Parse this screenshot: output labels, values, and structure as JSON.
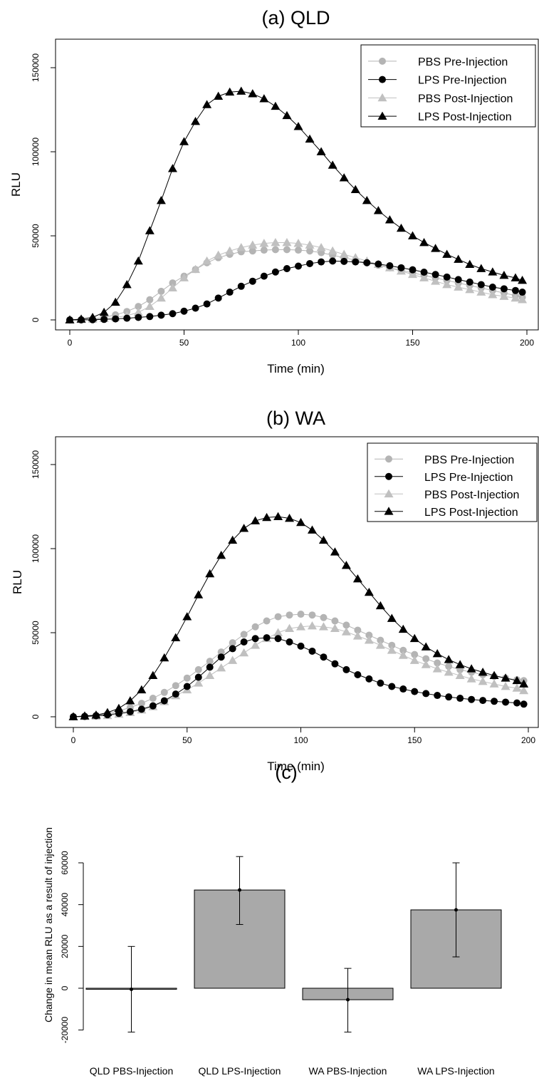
{
  "chart_data": [
    {
      "type": "line",
      "title": "(a) QLD",
      "xlabel": "Time (min)",
      "ylabel": "RLU",
      "xlim": [
        0,
        200
      ],
      "ylim": [
        0,
        150000
      ],
      "x_ticks": [
        "0",
        "50",
        "100",
        "150",
        "200"
      ],
      "y_ticks": [
        "0",
        "50000",
        "100000",
        "150000"
      ],
      "legend_position": "top-right",
      "grid": false,
      "x": [
        0,
        5,
        10,
        15,
        20,
        25,
        30,
        35,
        40,
        45,
        50,
        55,
        60,
        65,
        70,
        75,
        80,
        85,
        90,
        95,
        100,
        105,
        110,
        115,
        120,
        125,
        130,
        135,
        140,
        145,
        150,
        155,
        160,
        165,
        170,
        175,
        180,
        185,
        190,
        195,
        198
      ],
      "series": [
        {
          "name": "PBS Pre-Injection",
          "color": "#b4b4b4",
          "marker": "circle",
          "values": [
            0,
            200,
            600,
            1500,
            3000,
            5000,
            8000,
            12000,
            17000,
            22000,
            26000,
            30000,
            34000,
            37000,
            39000,
            40500,
            41000,
            41500,
            41800,
            41800,
            41500,
            41000,
            40000,
            38500,
            37000,
            35500,
            34000,
            32500,
            31000,
            29500,
            28000,
            26500,
            25000,
            23500,
            22000,
            20500,
            19000,
            17500,
            16000,
            14500,
            13500
          ]
        },
        {
          "name": "LPS Pre-Injection",
          "color": "#000000",
          "marker": "circle",
          "values": [
            0,
            0,
            100,
            300,
            600,
            1000,
            1500,
            2000,
            2800,
            3700,
            5200,
            7000,
            9500,
            13000,
            16500,
            20000,
            23000,
            26000,
            28500,
            30500,
            32000,
            33500,
            34500,
            35000,
            34800,
            34500,
            34000,
            33200,
            32200,
            31000,
            29800,
            28400,
            27000,
            25500,
            24000,
            22500,
            21000,
            19500,
            18500,
            17500,
            16500
          ]
        },
        {
          "name": "PBS Post-Injection",
          "color": "#c0c0c0",
          "marker": "triangle",
          "values": [
            0,
            200,
            400,
            800,
            1500,
            2500,
            4500,
            8000,
            13000,
            19000,
            25000,
            30000,
            35000,
            38500,
            41000,
            43000,
            44500,
            45500,
            46000,
            46000,
            45500,
            44500,
            43000,
            41000,
            39000,
            37000,
            35000,
            33000,
            31000,
            29000,
            27000,
            25000,
            23000,
            21000,
            19500,
            18000,
            16500,
            15000,
            14000,
            13000,
            12000
          ]
        },
        {
          "name": "LPS Post-Injection",
          "color": "#000000",
          "marker": "triangle",
          "values": [
            0,
            500,
            1500,
            4500,
            10500,
            21000,
            35000,
            53000,
            71000,
            90000,
            106000,
            118000,
            128000,
            133000,
            135500,
            136000,
            134500,
            131500,
            127000,
            121500,
            115000,
            107500,
            100000,
            92000,
            84500,
            77500,
            71000,
            65000,
            59500,
            54500,
            50000,
            46000,
            42500,
            39000,
            36000,
            33000,
            30500,
            28500,
            26500,
            25000,
            23500
          ]
        }
      ]
    },
    {
      "type": "line",
      "title": "(b) WA",
      "xlabel": "Time (min)",
      "ylabel": "RLU",
      "xlim": [
        0,
        200
      ],
      "ylim": [
        0,
        150000
      ],
      "x_ticks": [
        "0",
        "50",
        "100",
        "150",
        "200"
      ],
      "y_ticks": [
        "0",
        "50000",
        "100000",
        "150000"
      ],
      "legend_position": "top-right",
      "grid": false,
      "x": [
        0,
        5,
        10,
        15,
        20,
        25,
        30,
        35,
        40,
        45,
        50,
        55,
        60,
        65,
        70,
        75,
        80,
        85,
        90,
        95,
        100,
        105,
        110,
        115,
        120,
        125,
        130,
        135,
        140,
        145,
        150,
        155,
        160,
        165,
        170,
        175,
        180,
        185,
        190,
        195,
        198
      ],
      "series": [
        {
          "name": "PBS Pre-Injection",
          "color": "#b4b4b4",
          "marker": "circle",
          "values": [
            0,
            300,
            800,
            1800,
            3500,
            5500,
            8000,
            11000,
            14500,
            18500,
            23000,
            28000,
            33000,
            38500,
            44000,
            49000,
            53500,
            57000,
            59500,
            60500,
            61000,
            60500,
            59000,
            57000,
            54500,
            51500,
            48500,
            45500,
            42500,
            39500,
            37000,
            34500,
            32000,
            30000,
            28000,
            26500,
            25000,
            24000,
            23000,
            22000,
            21500
          ]
        },
        {
          "name": "LPS Pre-Injection",
          "color": "#000000",
          "marker": "circle",
          "values": [
            0,
            200,
            600,
            1200,
            2000,
            3000,
            4500,
            6500,
            9500,
            13500,
            18000,
            23500,
            29500,
            35500,
            40500,
            44500,
            46500,
            47000,
            46500,
            44500,
            42000,
            39000,
            35500,
            31500,
            28000,
            25000,
            22500,
            20000,
            18000,
            16500,
            15000,
            13800,
            12700,
            11800,
            11000,
            10300,
            9700,
            9200,
            8700,
            8200,
            7500
          ]
        },
        {
          "name": "PBS Post-Injection",
          "color": "#c0c0c0",
          "marker": "triangle",
          "values": [
            0,
            100,
            300,
            700,
            1500,
            2500,
            4000,
            6000,
            9000,
            12500,
            16000,
            20000,
            24500,
            29000,
            33500,
            38000,
            42500,
            46500,
            50000,
            52500,
            53500,
            54000,
            53500,
            52500,
            50500,
            48000,
            45500,
            42500,
            39500,
            36500,
            33500,
            31000,
            28500,
            26500,
            24500,
            22500,
            21000,
            19500,
            18000,
            17000,
            15500
          ]
        },
        {
          "name": "LPS Post-Injection",
          "color": "#000000",
          "marker": "triangle",
          "values": [
            0,
            500,
            1000,
            2500,
            5000,
            9500,
            16000,
            24500,
            35000,
            47000,
            59500,
            72500,
            85000,
            96000,
            105000,
            112000,
            116500,
            118500,
            119000,
            118000,
            115500,
            111000,
            105000,
            98000,
            90000,
            82000,
            74000,
            66000,
            58500,
            52000,
            46500,
            41500,
            37500,
            34000,
            31000,
            28500,
            26500,
            24500,
            23000,
            21500,
            19500
          ]
        }
      ]
    },
    {
      "type": "bar",
      "title": "(c)",
      "xlabel": "",
      "ylabel": "Change in mean RLU as a result of injection",
      "ylim": [
        -20000,
        60000
      ],
      "y_ticks": [
        "-20000",
        "0",
        "20000",
        "40000",
        "60000"
      ],
      "categories": [
        "QLD PBS-Injection",
        "QLD LPS-Injection",
        "WA PBS-Injection",
        "WA LPS-Injection"
      ],
      "values": [
        -500,
        47000,
        -5500,
        37500
      ],
      "error_low": [
        -21000,
        30500,
        -21000,
        15000
      ],
      "error_high": [
        20000,
        63000,
        9500,
        60000
      ],
      "bar_color": "#a9a9a9"
    }
  ]
}
